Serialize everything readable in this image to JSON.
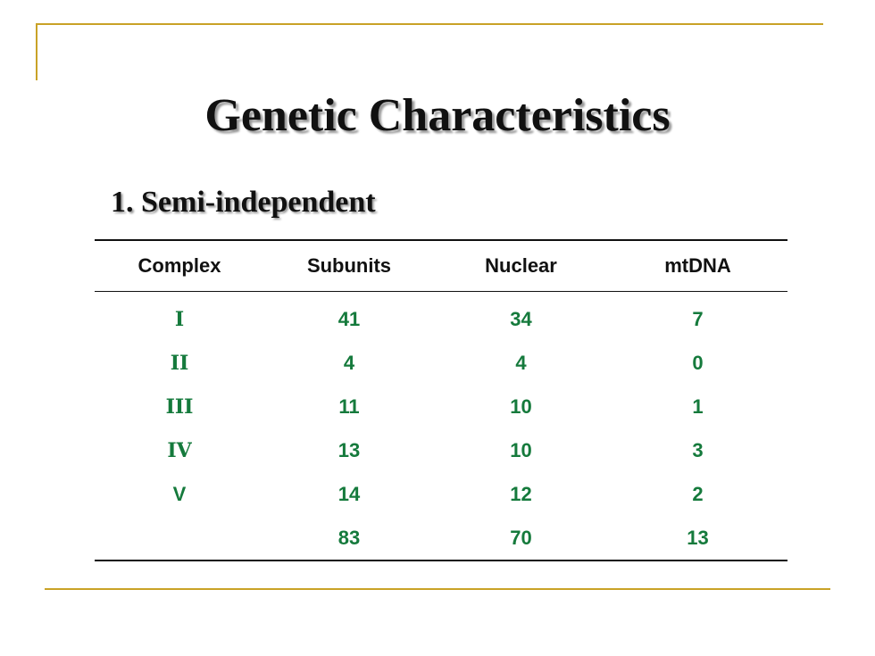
{
  "slide": {
    "title": "Genetic Characteristics",
    "subtitle": "1.  Semi-independent"
  },
  "table": {
    "headers": [
      "Complex",
      "Subunits",
      "Nuclear",
      "mtDNA"
    ],
    "rows": [
      {
        "complex": "I",
        "subunits": "41",
        "nuclear": "34",
        "mtdna": "7"
      },
      {
        "complex": "II",
        "subunits": "4",
        "nuclear": "4",
        "mtdna": "0"
      },
      {
        "complex": "III",
        "subunits": "11",
        "nuclear": "10",
        "mtdna": "1"
      },
      {
        "complex": "IV",
        "subunits": "13",
        "nuclear": "10",
        "mtdna": "3"
      },
      {
        "complex": "V",
        "subunits": "14",
        "nuclear": "12",
        "mtdna": "2"
      },
      {
        "complex": "",
        "subunits": "83",
        "nuclear": "70",
        "mtdna": "13"
      }
    ]
  },
  "colors": {
    "frame": "#c9a227",
    "text": "#111111",
    "values": "#157a3c"
  }
}
